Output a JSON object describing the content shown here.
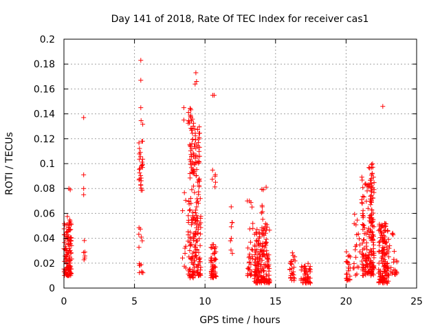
{
  "chart_data": {
    "type": "scatter",
    "title": "Day 141 of 2018, Rate Of TEC Index for receiver cas1",
    "xlabel": "GPS time / hours",
    "ylabel": "ROTI / TECUs",
    "xlim": [
      0,
      25
    ],
    "ylim": [
      0,
      0.2
    ],
    "xticks": [
      0,
      5,
      10,
      15,
      20,
      25
    ],
    "xtick_labels": [
      "0",
      "5",
      "10",
      "15",
      "20",
      "25"
    ],
    "yticks": [
      0,
      0.02,
      0.04,
      0.06,
      0.08,
      0.1,
      0.12,
      0.14,
      0.16,
      0.18,
      0.2
    ],
    "ytick_labels": [
      "0",
      "0.02",
      "0.04",
      "0.06",
      "0.08",
      "0.1",
      "0.12",
      "0.14",
      "0.16",
      "0.18",
      "0.2"
    ],
    "grid": true,
    "marker": "+",
    "series_color": "#ff0000",
    "clusters": [
      {
        "x": [
          0.0,
          0.55
        ],
        "y": [
          0.01,
          0.052
        ],
        "n": 120
      },
      {
        "x": [
          0.2,
          0.55
        ],
        "y": [
          0.052,
          0.064
        ],
        "n": 5
      },
      {
        "x": [
          1.3,
          1.5
        ],
        "y": [
          0.022,
          0.04
        ],
        "n": 6
      },
      {
        "x": [
          5.3,
          5.6
        ],
        "y": [
          0.012,
          0.02
        ],
        "n": 8
      },
      {
        "x": [
          5.3,
          5.6
        ],
        "y": [
          0.03,
          0.052
        ],
        "n": 6
      },
      {
        "x": [
          5.3,
          5.6
        ],
        "y": [
          0.078,
          0.135
        ],
        "n": 30
      },
      {
        "x": [
          8.4,
          8.7
        ],
        "y": [
          0.01,
          0.04
        ],
        "n": 6
      },
      {
        "x": [
          8.4,
          8.7
        ],
        "y": [
          0.062,
          0.08
        ],
        "n": 3
      },
      {
        "x": [
          8.8,
          9.2
        ],
        "y": [
          0.008,
          0.145
        ],
        "n": 110
      },
      {
        "x": [
          9.2,
          9.7
        ],
        "y": [
          0.01,
          0.13
        ],
        "n": 130
      },
      {
        "x": [
          10.4,
          10.8
        ],
        "y": [
          0.008,
          0.035
        ],
        "n": 50
      },
      {
        "x": [
          10.5,
          10.8
        ],
        "y": [
          0.08,
          0.095
        ],
        "n": 6
      },
      {
        "x": [
          11.8,
          12.0
        ],
        "y": [
          0.018,
          0.067
        ],
        "n": 8
      },
      {
        "x": [
          13.0,
          13.4
        ],
        "y": [
          0.01,
          0.07
        ],
        "n": 30
      },
      {
        "x": [
          13.5,
          14.6
        ],
        "y": [
          0.004,
          0.05
        ],
        "n": 180
      },
      {
        "x": [
          14.0,
          14.4
        ],
        "y": [
          0.05,
          0.085
        ],
        "n": 10
      },
      {
        "x": [
          16.0,
          16.4
        ],
        "y": [
          0.006,
          0.03
        ],
        "n": 25
      },
      {
        "x": [
          16.8,
          17.5
        ],
        "y": [
          0.004,
          0.02
        ],
        "n": 50
      },
      {
        "x": [
          20.0,
          20.3
        ],
        "y": [
          0.006,
          0.031
        ],
        "n": 25
      },
      {
        "x": [
          20.5,
          21.0
        ],
        "y": [
          0.01,
          0.064
        ],
        "n": 20
      },
      {
        "x": [
          21.1,
          21.6
        ],
        "y": [
          0.01,
          0.09
        ],
        "n": 80
      },
      {
        "x": [
          21.6,
          22.0
        ],
        "y": [
          0.01,
          0.1
        ],
        "n": 120
      },
      {
        "x": [
          22.3,
          23.0
        ],
        "y": [
          0.004,
          0.052
        ],
        "n": 140
      },
      {
        "x": [
          23.0,
          23.3
        ],
        "y": [
          0.01,
          0.045
        ],
        "n": 10
      },
      {
        "x": [
          23.3,
          23.6
        ],
        "y": [
          0.01,
          0.045
        ],
        "n": 14
      }
    ],
    "outliers": [
      {
        "x": 0.35,
        "y": 0.08
      },
      {
        "x": 0.45,
        "y": 0.079
      },
      {
        "x": 1.4,
        "y": 0.137
      },
      {
        "x": 1.4,
        "y": 0.091
      },
      {
        "x": 1.4,
        "y": 0.08
      },
      {
        "x": 1.4,
        "y": 0.075
      },
      {
        "x": 5.45,
        "y": 0.183
      },
      {
        "x": 5.45,
        "y": 0.167
      },
      {
        "x": 5.45,
        "y": 0.145
      },
      {
        "x": 8.5,
        "y": 0.145
      },
      {
        "x": 8.5,
        "y": 0.135
      },
      {
        "x": 9.35,
        "y": 0.173
      },
      {
        "x": 9.4,
        "y": 0.166
      },
      {
        "x": 9.3,
        "y": 0.164
      },
      {
        "x": 10.55,
        "y": 0.155
      },
      {
        "x": 10.65,
        "y": 0.155
      },
      {
        "x": 13.0,
        "y": 0.07
      },
      {
        "x": 13.15,
        "y": 0.07
      },
      {
        "x": 22.6,
        "y": 0.146
      }
    ]
  }
}
